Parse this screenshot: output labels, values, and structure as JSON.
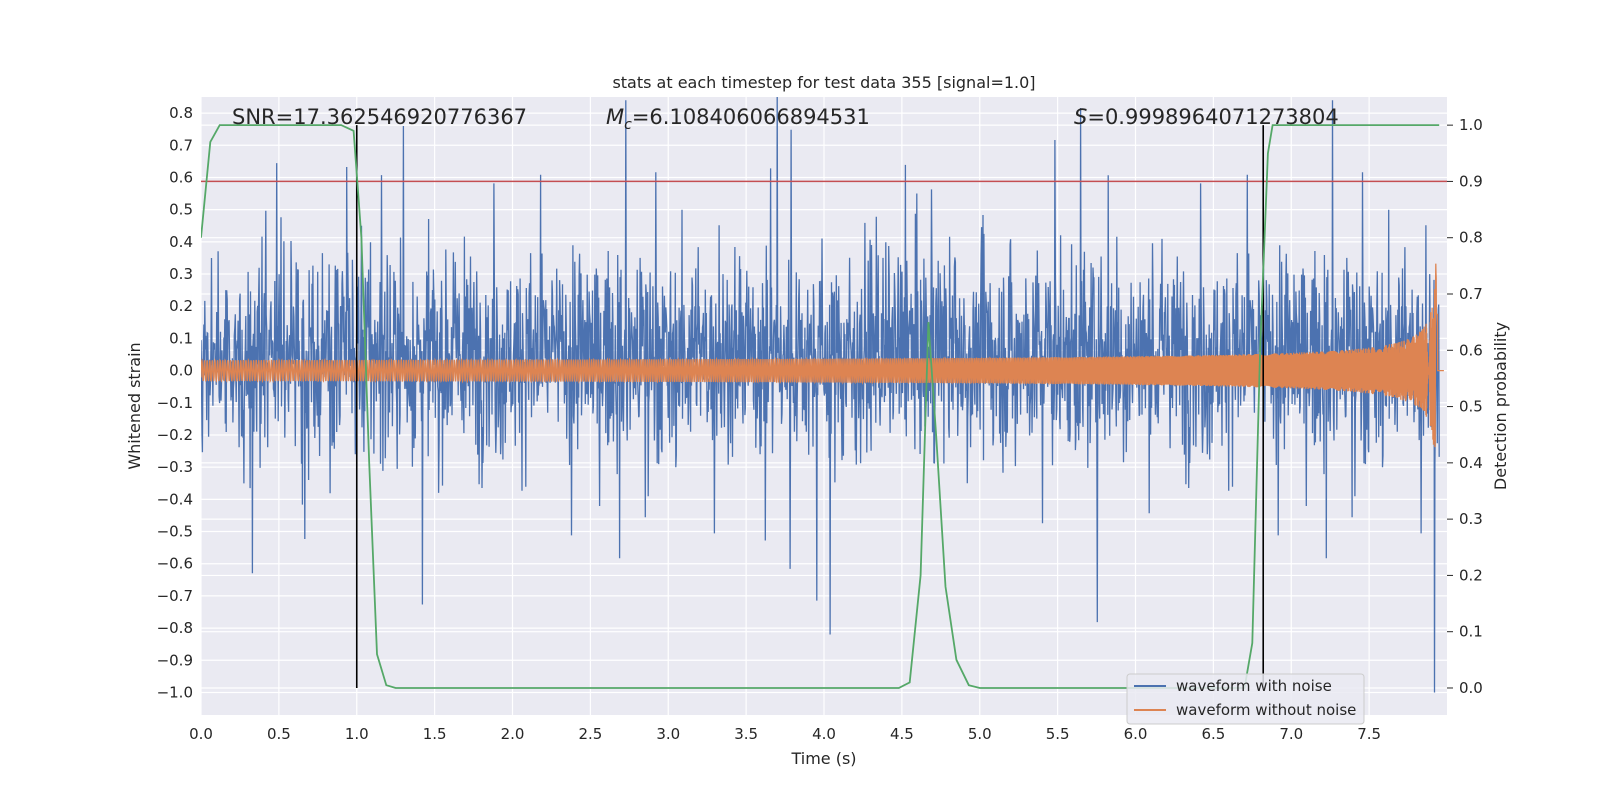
{
  "chart_data": {
    "type": "line",
    "title": "stats at each timestep for test data 355 [signal=1.0]",
    "xlabel": "Time (s)",
    "ylabel": "Whitened strain",
    "y2label": "Detection probability",
    "xlim": [
      0.0,
      8.0
    ],
    "ylim": [
      -1.07,
      0.85
    ],
    "y2lim": [
      -0.048,
      1.05
    ],
    "grid": true,
    "legend_placement": "lower-right",
    "x_ticks": [
      "0.0",
      "0.5",
      "1.0",
      "1.5",
      "2.0",
      "2.5",
      "3.0",
      "3.5",
      "4.0",
      "4.5",
      "5.0",
      "5.5",
      "6.0",
      "6.5",
      "7.0",
      "7.5"
    ],
    "y_ticks": [
      "0.8",
      "0.7",
      "0.6",
      "0.5",
      "0.4",
      "0.3",
      "0.2",
      "0.1",
      "0.0",
      "-0.1",
      "-0.2",
      "-0.3",
      "-0.4",
      "-0.5",
      "-0.6",
      "-0.7",
      "-0.8",
      "-0.9",
      "-1.0"
    ],
    "y2_ticks": [
      "0.0",
      "0.1",
      "0.2",
      "0.3",
      "0.4",
      "0.5",
      "0.6",
      "0.7",
      "0.8",
      "0.9",
      "1.0"
    ],
    "annotations": {
      "snr": "SNR=17.362546920776367",
      "mc_symbol": "M",
      "mc_sub": "c",
      "mc_value": "=6.108406066894531",
      "s_symbol": "S",
      "s_value": "=0.9998964071273804"
    },
    "threshold_line": {
      "y2": 0.9,
      "color": "#c44e52"
    },
    "vertical_markers_x": [
      1.0,
      6.82
    ],
    "marker_color": "#000000",
    "series": [
      {
        "name": "waveform with noise",
        "color": "#4c72b0",
        "kind": "noisy_strain",
        "approx_envelope": [
          -0.35,
          0.45
        ],
        "extremes": [
          [
            1.3,
            0.76
          ],
          [
            4.04,
            -0.82
          ],
          [
            7.92,
            -1.0
          ]
        ]
      },
      {
        "name": "waveform without noise",
        "color": "#dd8452",
        "kind": "chirp",
        "amplitude_start": 0.02,
        "amplitude_end": 0.38,
        "coalescence_x": 7.92
      },
      {
        "name": "",
        "color": "#55a868",
        "axis": "right",
        "x": [
          0.0,
          0.06,
          0.12,
          0.5,
          0.9,
          0.98,
          1.03,
          1.08,
          1.13,
          1.19,
          1.25,
          3.0,
          4.48,
          4.55,
          4.62,
          4.67,
          4.72,
          4.78,
          4.85,
          4.93,
          5.0,
          6.7,
          6.75,
          6.8,
          6.85,
          6.88,
          7.0,
          7.95
        ],
        "values": [
          0.8,
          0.97,
          1.0,
          1.0,
          1.0,
          0.99,
          0.8,
          0.4,
          0.06,
          0.005,
          0.0,
          0.0,
          0.0,
          0.01,
          0.2,
          0.65,
          0.45,
          0.18,
          0.05,
          0.005,
          0.0,
          0.0,
          0.08,
          0.6,
          0.95,
          1.0,
          1.0,
          1.0
        ]
      }
    ]
  },
  "legend": {
    "noisy_label": "waveform with noise",
    "clean_label": "waveform without noise"
  },
  "colors": {
    "plot_background": "#eaeaf2",
    "grid": "#ffffff",
    "noisy": "#4c72b0",
    "clean": "#dd8452",
    "probability": "#55a868",
    "threshold": "#c44e52"
  }
}
